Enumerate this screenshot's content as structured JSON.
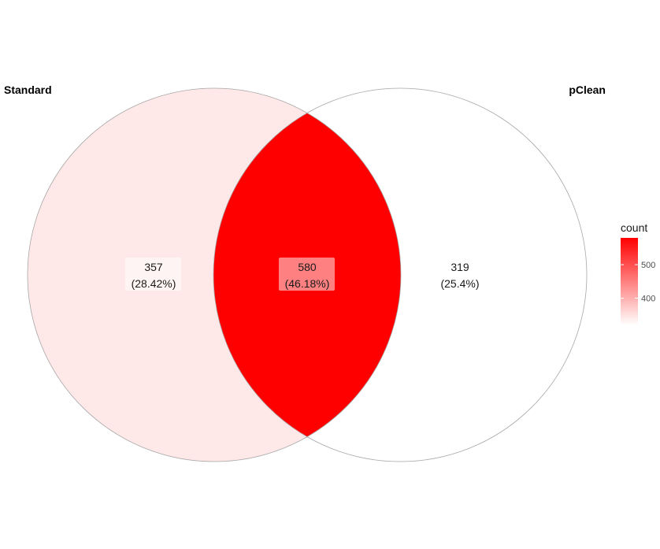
{
  "diagram": {
    "type": "venn",
    "sets": [
      {
        "id": "standard",
        "label": "Standard"
      },
      {
        "id": "pclean",
        "label": "pClean"
      }
    ],
    "regions": [
      {
        "id": "standard_only",
        "sets": [
          "standard"
        ],
        "count": 357,
        "count_text": "357",
        "percent_text": "(28.42%)"
      },
      {
        "id": "both",
        "sets": [
          "standard",
          "pclean"
        ],
        "count": 580,
        "count_text": "580",
        "percent_text": "(46.18%)"
      },
      {
        "id": "pclean_only",
        "sets": [
          "pclean"
        ],
        "count": 319,
        "count_text": "319",
        "percent_text": "(25.4%)"
      }
    ]
  },
  "legend": {
    "title": "count",
    "ticks": [
      {
        "value": 400,
        "label": "400"
      },
      {
        "value": 500,
        "label": "500"
      }
    ],
    "low_color": "#ffffff",
    "high_color": "#ff0000",
    "min": 319,
    "max": 580
  },
  "colors": {
    "outline": "#a6a6a6",
    "label_box": "#ffffff"
  }
}
